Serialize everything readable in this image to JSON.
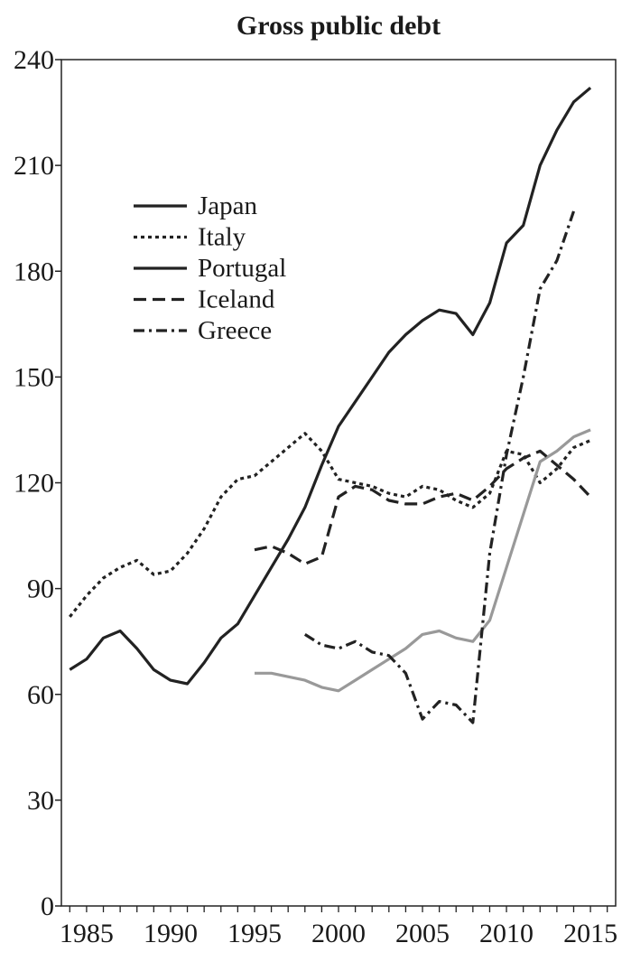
{
  "chart_data": {
    "type": "line",
    "title": "Gross public debt",
    "xlabel": "",
    "ylabel": "",
    "xlim": [
      1983.5,
      2016.5
    ],
    "ylim": [
      0,
      240
    ],
    "yticks": [
      0,
      30,
      60,
      90,
      120,
      150,
      180,
      210,
      240
    ],
    "xtick_labels": [
      1985,
      1990,
      1995,
      2000,
      2005,
      2010,
      2015
    ],
    "grid": false,
    "legend_position": "top-left",
    "series": [
      {
        "name": "Japan",
        "color": "#222222",
        "dash": "solid",
        "x": [
          1984,
          1985,
          1986,
          1987,
          1988,
          1989,
          1990,
          1991,
          1992,
          1993,
          1994,
          1995,
          1996,
          1997,
          1998,
          1999,
          2000,
          2001,
          2002,
          2003,
          2004,
          2005,
          2006,
          2007,
          2008,
          2009,
          2010,
          2011,
          2012,
          2013,
          2014,
          2015
        ],
        "y": [
          67,
          70,
          76,
          78,
          73,
          67,
          64,
          63,
          69,
          76,
          80,
          88,
          96,
          104,
          113,
          125,
          136,
          143,
          150,
          157,
          162,
          166,
          169,
          168,
          162,
          171,
          188,
          193,
          210,
          220,
          228,
          232
        ]
      },
      {
        "name": "Italy",
        "color": "#222222",
        "dash": "dotted",
        "x": [
          1984,
          1985,
          1986,
          1987,
          1988,
          1989,
          1990,
          1991,
          1992,
          1993,
          1994,
          1995,
          1996,
          1997,
          1998,
          1999,
          2000,
          2001,
          2002,
          2003,
          2004,
          2005,
          2006,
          2007,
          2008,
          2009,
          2010,
          2011,
          2012,
          2013,
          2014,
          2015
        ],
        "y": [
          82,
          88,
          93,
          96,
          98,
          94,
          95,
          100,
          107,
          116,
          121,
          122,
          126,
          130,
          134,
          129,
          121,
          120,
          119,
          117,
          116,
          119,
          118,
          115,
          113,
          117,
          129,
          128,
          120,
          124,
          130,
          132
        ]
      },
      {
        "name": "Portugal",
        "color": "#999999",
        "dash": "solid",
        "x": [
          1995,
          1996,
          1997,
          1998,
          1999,
          2000,
          2001,
          2002,
          2003,
          2004,
          2005,
          2006,
          2007,
          2008,
          2009,
          2010,
          2011,
          2012,
          2013,
          2014,
          2015
        ],
        "y": [
          66,
          66,
          65,
          64,
          62,
          61,
          64,
          67,
          70,
          73,
          77,
          78,
          76,
          75,
          81,
          96,
          111,
          126,
          129,
          133,
          135
        ]
      },
      {
        "name": "Iceland",
        "color": "#222222",
        "dash": "dashed",
        "x": [
          1995,
          1996,
          1997,
          1998,
          1999,
          2000,
          2001,
          2002,
          2003,
          2004,
          2005,
          2006,
          2007,
          2008,
          2009,
          2010,
          2011,
          2012,
          2013,
          2014,
          2015
        ],
        "y": [
          101,
          102,
          100,
          97,
          99,
          116,
          119,
          118,
          115,
          114,
          114,
          116,
          117,
          115,
          119,
          124,
          127,
          129,
          125,
          121,
          116
        ]
      },
      {
        "name": "Greece",
        "color": "#222222",
        "dash": "dashdot",
        "x": [
          1998,
          1999,
          2000,
          2001,
          2002,
          2003,
          2004,
          2005,
          2006,
          2007,
          2008,
          2009,
          2010,
          2011,
          2012,
          2013,
          2014
        ],
        "y": [
          77,
          74,
          73,
          75,
          72,
          71,
          66,
          53,
          58,
          57,
          52,
          100,
          128,
          150,
          175,
          183,
          197
        ]
      }
    ]
  }
}
